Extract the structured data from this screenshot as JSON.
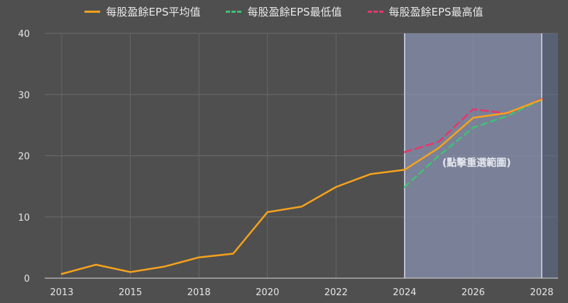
{
  "legend": {
    "avg_label": "每股盈餘EPS平均值",
    "low_label": "每股盈餘EPS最低值",
    "high_label": "每股盈餘EPS最高值"
  },
  "reset_zoom_label": "(點擊重選範圍)",
  "colors": {
    "avg": "#f6a21c",
    "low": "#3fc176",
    "high": "#e8356a",
    "highlight": "#8a93b3",
    "background": "#4f4f4f"
  },
  "chart_data": {
    "type": "line",
    "x_ticks": [
      "2013",
      "2015",
      "2018",
      "2020",
      "2022",
      "2024",
      "2026",
      "2028"
    ],
    "y_ticks": [
      "0",
      "10",
      "20",
      "30",
      "40"
    ],
    "ylim": [
      0,
      40
    ],
    "grid": true,
    "legend_position": "top-center",
    "highlight_band": {
      "from_tick": "2024",
      "to_tick": "2028"
    },
    "series": [
      {
        "name": "每股盈餘EPS平均值",
        "style": "solid",
        "tick_positions": [
          0,
          0.5,
          1,
          1.5,
          2,
          2.5,
          3,
          3.5,
          4,
          4.5,
          5,
          5.5,
          6,
          6.5,
          7
        ],
        "values": [
          0.7,
          2.2,
          1.0,
          1.9,
          3.4,
          4.0,
          10.8,
          11.7,
          14.9,
          17.0,
          17.7,
          21.3,
          26.2,
          27.0,
          29.2
        ]
      },
      {
        "name": "每股盈餘EPS最低值",
        "style": "dashed",
        "tick_positions": [
          5,
          5.5,
          6,
          6.5,
          7
        ],
        "values": [
          14.9,
          20.0,
          24.6,
          26.5,
          29.2
        ]
      },
      {
        "name": "每股盈餘EPS最高值",
        "style": "dashed",
        "tick_positions": [
          5,
          5.5,
          6,
          6.5,
          7
        ],
        "values": [
          20.6,
          22.3,
          27.6,
          26.9,
          29.3
        ]
      }
    ]
  }
}
